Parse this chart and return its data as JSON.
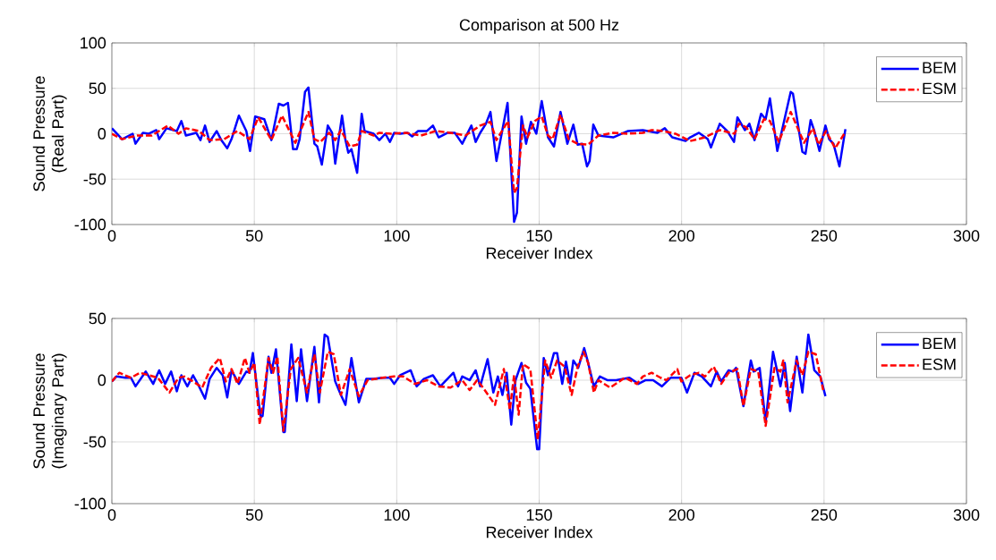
{
  "chart_data": [
    {
      "type": "line",
      "title": "Comparison at 500 Hz",
      "xlabel": "Receiver Index",
      "ylabel": "Sound Pressure (Real Part)",
      "xlim": [
        0,
        300
      ],
      "ylim": [
        -100,
        100
      ],
      "xticks": [
        0,
        50,
        100,
        150,
        200,
        250,
        300
      ],
      "yticks": [
        -100,
        -50,
        0,
        50,
        100
      ],
      "grid": true,
      "legend": "top right",
      "series": [
        {
          "name": "BEM",
          "color": "#0000ff",
          "line_style": "solid",
          "x": [
            0,
            3.6,
            7.3,
            8.3,
            10.9,
            13,
            15.6,
            16.6,
            19.2,
            22.8,
            24.4,
            26,
            29.6,
            31.1,
            32.7,
            34.3,
            36.8,
            38.4,
            40.5,
            42,
            44.6,
            47.2,
            48.5,
            50.3,
            53.5,
            56,
            58.6,
            60.2,
            61.8,
            63.6,
            64.9,
            65.9,
            67.8,
            69,
            71.1,
            72.1,
            73.7,
            75.8,
            77.3,
            78.4,
            80.8,
            82,
            83,
            84.1,
            86.1,
            87.7,
            88.7,
            91.9,
            93.9,
            96,
            97.6,
            99.1,
            101.2,
            103.8,
            105.4,
            107.5,
            110.6,
            112.7,
            114.7,
            117.9,
            120.4,
            123,
            126.2,
            127.7,
            129.3,
            131.3,
            132.9,
            135,
            138.9,
            141.2,
            142.2,
            143.8,
            145.4,
            147.1,
            149,
            150.9,
            153.1,
            155.2,
            157.5,
            159.9,
            162,
            163.5,
            165.1,
            166.8,
            167.7,
            169,
            170.8,
            176,
            181.2,
            186.4,
            191.5,
            194.1,
            196.7,
            201.4,
            203,
            206.1,
            209.2,
            210.3,
            213.4,
            216,
            218.4,
            219.6,
            222.2,
            223.8,
            225.6,
            227.9,
            229.5,
            231,
            233.6,
            238.3,
            239.1,
            242.4,
            243.5,
            245.3,
            246.6,
            248.4,
            250.5,
            251.8,
            253.3,
            255.4,
            257.5
          ],
          "values": [
            6,
            -6,
            0,
            -11,
            1,
            0,
            4,
            -6,
            6,
            3,
            14,
            -2,
            1,
            -7,
            9,
            -9,
            3,
            -7,
            -16,
            -6,
            20,
            3,
            -19,
            19,
            16,
            -7,
            33,
            31,
            34,
            -17,
            -17,
            -6,
            46,
            51,
            -11,
            -14,
            -34,
            9,
            1,
            -33,
            20,
            -7,
            -21,
            -17,
            -43,
            22,
            3,
            0,
            -7,
            0,
            -9,
            1,
            0,
            1,
            -3,
            3,
            3,
            9,
            -4,
            1,
            1,
            -11,
            9,
            -9,
            1,
            11,
            24,
            -30,
            34,
            -97,
            -87,
            19,
            -11,
            13,
            0,
            36,
            -4,
            -14,
            24,
            -11,
            10,
            -12,
            -11,
            -36,
            -30,
            10,
            -2,
            -4,
            3,
            4,
            1,
            6,
            -4,
            -8,
            -4,
            1,
            -6,
            -15,
            11,
            3,
            -9,
            18,
            4,
            11,
            -7,
            22,
            16,
            39,
            -19,
            46,
            44,
            -20,
            -22,
            15,
            3,
            -19,
            9,
            -6,
            -11,
            -36,
            5
          ]
        },
        {
          "name": "ESM",
          "color": "#ff0000",
          "line_style": "dashed",
          "x": [
            0,
            3.6,
            8.8,
            14,
            19.7,
            23.4,
            26,
            30.6,
            34.3,
            39.4,
            44.1,
            48.3,
            51.4,
            56,
            59.7,
            64.4,
            69,
            71.1,
            73.2,
            76.3,
            78.4,
            80.4,
            83.5,
            86.1,
            87.7,
            91.9,
            93.9,
            98.1,
            103.3,
            108.5,
            113.7,
            118.9,
            124.1,
            129.3,
            132.9,
            135,
            139.1,
            141.2,
            142.2,
            144.3,
            145.9,
            148.5,
            150.9,
            153.1,
            154.7,
            157.5,
            160.4,
            163.5,
            167.2,
            170.8,
            176,
            181.2,
            186.4,
            189.5,
            193.6,
            197.8,
            203,
            208.2,
            213.4,
            218.6,
            220.1,
            222.7,
            225.6,
            228.9,
            231,
            234.1,
            238.3,
            243,
            246.1,
            248.1,
            250.7,
            253.9,
            257.5
          ],
          "values": [
            0,
            -6,
            -2,
            -2,
            9,
            0,
            6,
            3,
            -7,
            -6,
            3,
            -6,
            18,
            -7,
            20,
            -10,
            24,
            -6,
            -9,
            1,
            -7,
            4,
            -14,
            -12,
            3,
            -2,
            1,
            0,
            1,
            -2,
            3,
            1,
            -2,
            9,
            13,
            -7,
            14,
            -65,
            -60,
            9,
            -4,
            14,
            19,
            -2,
            -6,
            21,
            -6,
            -11,
            -12,
            -2,
            1,
            0,
            1,
            4,
            3,
            0,
            -8,
            -4,
            4,
            0,
            11,
            7,
            -6,
            16,
            14,
            -9,
            24,
            -10,
            6,
            -12,
            3,
            -16,
            2
          ]
        }
      ]
    },
    {
      "type": "line",
      "xlabel": "Receiver Index",
      "ylabel": "Sound Pressure (Imaginary Part)",
      "xlim": [
        0,
        300
      ],
      "ylim": [
        -100,
        50
      ],
      "xticks": [
        0,
        50,
        100,
        150,
        200,
        250,
        300
      ],
      "yticks": [
        -100,
        -50,
        0,
        50
      ],
      "grid": true,
      "legend": "top right",
      "series": [
        {
          "name": "BEM",
          "color": "#0000ff",
          "line_style": "solid",
          "x": [
            0,
            1.6,
            4.7,
            6.7,
            8.3,
            11.9,
            14.5,
            16.6,
            18.7,
            20.8,
            22.8,
            24.4,
            26.5,
            28.5,
            30.6,
            32.7,
            34.3,
            36.8,
            38.9,
            40.5,
            42,
            44.6,
            47.2,
            48.3,
            49.5,
            52.2,
            52.9,
            55,
            56,
            57.6,
            60.2,
            60.7,
            63,
            64.9,
            66.4,
            68.5,
            71.1,
            72.7,
            74.7,
            75.8,
            78.4,
            80.4,
            82,
            84.1,
            86.7,
            89.3,
            91.9,
            95,
            97.6,
            99.1,
            101.2,
            104.9,
            107,
            109.5,
            112.7,
            115.3,
            119.9,
            121.5,
            123,
            125.6,
            127.7,
            129.3,
            131.9,
            133.9,
            135.5,
            137.1,
            138.6,
            140.2,
            141.7,
            143.8,
            145.4,
            146.9,
            149.3,
            150,
            151.6,
            153.1,
            155.2,
            156.3,
            158.1,
            159.4,
            160.9,
            162,
            163.7,
            165.8,
            167.2,
            169.2,
            171.3,
            173.9,
            177,
            181.7,
            184.8,
            187.4,
            190,
            193.1,
            196.2,
            199.9,
            201.9,
            204.5,
            207.1,
            210.3,
            212.3,
            213.9,
            216.5,
            218,
            219.1,
            221.7,
            224.3,
            225.3,
            227.4,
            229.5,
            232.1,
            234.7,
            236.2,
            238.1,
            240.4,
            242.4,
            244.5,
            246.6,
            248.7,
            250.5
          ],
          "values": [
            -1,
            3,
            2,
            2,
            -5,
            7,
            -3,
            8,
            -3,
            7,
            -9,
            4,
            -5,
            4,
            -5,
            -15,
            1,
            10,
            4,
            -14,
            8,
            -3,
            7,
            6,
            22,
            -30,
            -29,
            19,
            6,
            25,
            -42,
            -42,
            29,
            -17,
            25,
            -17,
            27,
            -18,
            37,
            35,
            -1,
            -12,
            -20,
            18,
            -18,
            1,
            1,
            2,
            2,
            -3,
            4,
            8,
            -5,
            1,
            4,
            -5,
            6,
            -5,
            3,
            0,
            8,
            -5,
            17,
            -10,
            3,
            -12,
            6,
            -36,
            0,
            14,
            -2,
            -7,
            -56,
            -56,
            18,
            4,
            22,
            22,
            -3,
            15,
            -3,
            16,
            10,
            26,
            14,
            -5,
            3,
            0,
            0,
            2,
            -3,
            0,
            0,
            -5,
            2,
            2,
            -10,
            6,
            3,
            -5,
            7,
            -1,
            8,
            7,
            10,
            -21,
            16,
            7,
            10,
            -34,
            23,
            -5,
            14,
            -25,
            19,
            -10,
            37,
            8,
            3,
            -13
          ]
        },
        {
          "name": "ESM",
          "color": "#ff0000",
          "line_style": "dashed",
          "x": [
            0,
            2.6,
            6.7,
            9.9,
            13,
            16.1,
            20.2,
            23.4,
            25.4,
            28.5,
            31.7,
            34.8,
            37.9,
            40,
            42,
            44.1,
            46.7,
            48.3,
            50,
            51.9,
            55,
            56.6,
            58.1,
            60.2,
            62.8,
            65.4,
            68.5,
            71.1,
            73,
            75.8,
            77.9,
            80.4,
            83.5,
            86.7,
            89.8,
            95,
            99.1,
            102.3,
            106.4,
            110.6,
            114.7,
            118.9,
            123,
            125.6,
            128.2,
            130.3,
            134.5,
            137.6,
            139.7,
            141.2,
            142.8,
            144.3,
            146.9,
            149.5,
            152.1,
            154.2,
            156.3,
            158.9,
            161.4,
            163.5,
            165.6,
            167.2,
            169.2,
            170.8,
            174.9,
            180.1,
            184.3,
            186.4,
            189.5,
            192.6,
            194.7,
            198.5,
            199.9,
            203,
            206.1,
            208.2,
            211.3,
            213.9,
            216.5,
            219.6,
            221.7,
            224.3,
            226.9,
            229.5,
            232.6,
            234.7,
            235.7,
            237.2,
            240.4,
            242.4,
            244.5,
            247.1,
            249.7
          ],
          "values": [
            -1,
            6,
            2,
            6,
            4,
            2,
            -10,
            2,
            3,
            -1,
            -6,
            10,
            18,
            -1,
            9,
            -3,
            18,
            6,
            14,
            -36,
            18,
            6,
            19,
            -41,
            9,
            18,
            -10,
            21,
            -10,
            23,
            21,
            -12,
            9,
            -13,
            0,
            2,
            3,
            3,
            -3,
            0,
            -5,
            -6,
            0,
            -8,
            0,
            -6,
            -20,
            9,
            -24,
            4,
            -28,
            13,
            9,
            -48,
            16,
            2,
            16,
            11,
            -12,
            11,
            23,
            14,
            -10,
            0,
            -6,
            2,
            -3,
            3,
            6,
            2,
            0,
            9,
            -1,
            4,
            6,
            3,
            11,
            -3,
            6,
            9,
            -21,
            9,
            7,
            -37,
            10,
            7,
            16,
            -18,
            16,
            4,
            23,
            21,
            -8
          ]
        }
      ]
    }
  ]
}
